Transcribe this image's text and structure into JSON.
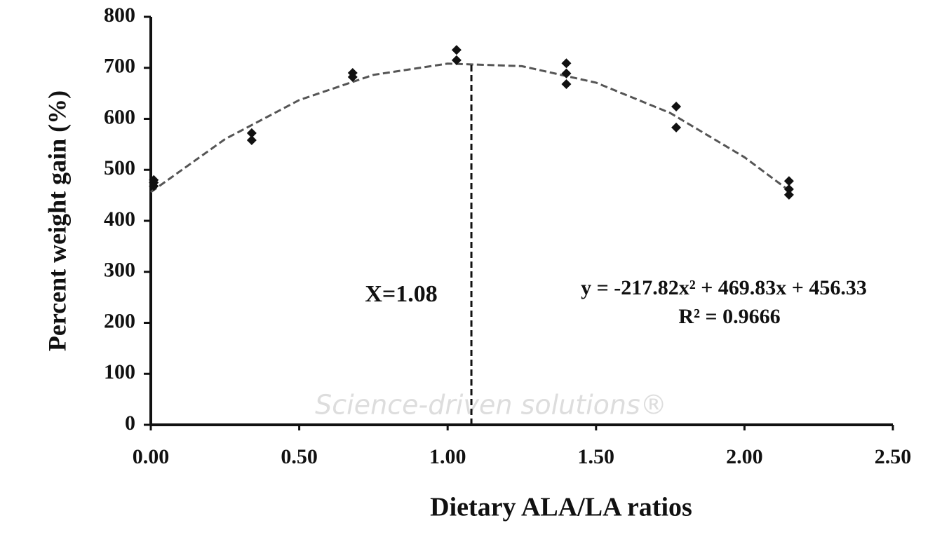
{
  "chart_data": {
    "type": "scatter",
    "x_label": "Dietary ALA/LA ratios",
    "y_label": "Percent weight gain (%)",
    "x": [
      0.01,
      0.01,
      0.01,
      0.34,
      0.34,
      0.68,
      0.68,
      1.03,
      1.03,
      1.4,
      1.4,
      1.4,
      1.77,
      1.77,
      2.15,
      2.15,
      2.15
    ],
    "values": [
      480,
      475,
      468,
      572,
      558,
      690,
      682,
      735,
      715,
      709,
      689,
      668,
      624,
      583,
      478,
      462,
      451
    ],
    "color": "#111111",
    "fit": {
      "color": "#555555",
      "x": [
        0,
        0.25,
        0.5,
        0.75,
        1.0,
        1.25,
        1.5,
        1.75,
        2.0,
        2.15
      ],
      "y": [
        456.3,
        560.2,
        636.8,
        686.2,
        708.3,
        703.3,
        670.9,
        611.4,
        524.7,
        459.5
      ]
    },
    "vline": {
      "x": 1.08,
      "ymax": 710,
      "label": "X=1.08"
    },
    "equation": "y = -217.82x² + 469.83x + 456.33",
    "r_squared": "R² = 0.9666",
    "watermark": "Science-driven solutions®",
    "xlim": [
      0,
      2.5
    ],
    "xticks": [
      {
        "value": 0,
        "label": "0.00"
      },
      {
        "value": 0.5,
        "label": "0.50"
      },
      {
        "value": 1,
        "label": "1.00"
      },
      {
        "value": 1.5,
        "label": "1.50"
      },
      {
        "value": 2,
        "label": "2.00"
      },
      {
        "value": 2.5,
        "label": "2.50"
      }
    ],
    "ylim": [
      0,
      800
    ],
    "yticks": [
      0,
      100,
      200,
      300,
      400,
      500,
      600,
      700,
      800
    ]
  }
}
